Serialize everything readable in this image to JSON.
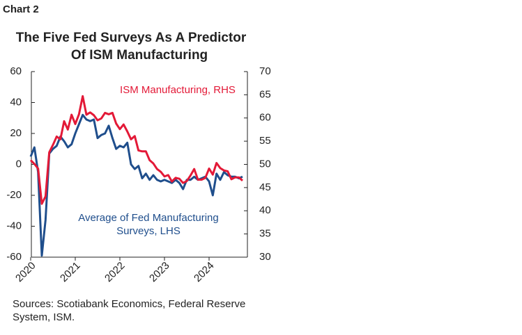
{
  "header": "Chart 2",
  "chart_data": {
    "type": "line",
    "title": [
      "The Five Fed Surveys As A Predictor",
      "Of ISM Manufacturing"
    ],
    "categories": [
      "2020",
      null,
      null,
      null,
      null,
      null,
      null,
      null,
      null,
      null,
      null,
      null,
      "2021",
      null,
      null,
      null,
      null,
      null,
      null,
      null,
      null,
      null,
      null,
      null,
      "2022",
      null,
      null,
      null,
      null,
      null,
      null,
      null,
      null,
      null,
      null,
      null,
      "2023",
      null,
      null,
      null,
      null,
      null,
      null,
      null,
      null,
      null,
      null,
      null,
      "2024",
      null,
      null,
      null,
      null,
      null,
      null,
      null,
      null,
      null
    ],
    "series": [
      {
        "name": "Average of Fed Manufacturing Surveys, LHS",
        "color": "#1f4e8c",
        "values": [
          5,
          11,
          -5,
          -59,
          -36,
          7,
          10,
          12,
          18,
          15,
          11,
          13,
          20,
          26,
          32,
          29,
          28,
          29,
          17,
          19,
          20,
          25,
          17,
          10,
          12,
          11,
          14,
          0,
          -3,
          -1,
          -9,
          -6,
          -10,
          -7,
          -10,
          -11,
          -10,
          -11,
          -12,
          -10,
          -12,
          -16,
          -10,
          -10,
          -8,
          -10,
          -9,
          -8,
          -11,
          -20,
          -6,
          -10,
          -5,
          -7,
          -8,
          -8,
          -9,
          -8
        ]
      },
      {
        "name": "ISM Manufacturing, RHS",
        "color": "#e31937",
        "axis": "y2",
        "values": [
          50.9,
          50.1,
          49.1,
          41.5,
          43.1,
          52.6,
          54.2,
          56.0,
          55.4,
          59.3,
          57.5,
          60.7,
          58.7,
          60.8,
          64.7,
          60.7,
          61.2,
          60.6,
          59.5,
          59.9,
          61.1,
          60.8,
          61.1,
          58.8,
          57.6,
          58.6,
          57.1,
          55.4,
          56.1,
          53.0,
          52.8,
          52.8,
          50.9,
          50.2,
          49.0,
          48.4,
          47.4,
          47.7,
          46.3,
          47.1,
          46.9,
          46.0,
          46.4,
          47.6,
          49.0,
          46.7,
          46.7,
          47.1,
          49.1,
          47.8,
          50.3,
          49.2,
          48.7,
          48.5,
          46.8,
          47.2,
          47.2,
          46.5
        ]
      }
    ],
    "ylim": [
      -60,
      60
    ],
    "yticks": [
      -60,
      -40,
      -20,
      0,
      20,
      40,
      60
    ],
    "y2lim": [
      30,
      70
    ],
    "y2ticks": [
      30,
      35,
      40,
      45,
      50,
      55,
      60,
      65,
      70
    ],
    "grid": false
  },
  "source": [
    "Sources: Scotiabank Economics, Federal Reserve",
    "System, ISM."
  ]
}
